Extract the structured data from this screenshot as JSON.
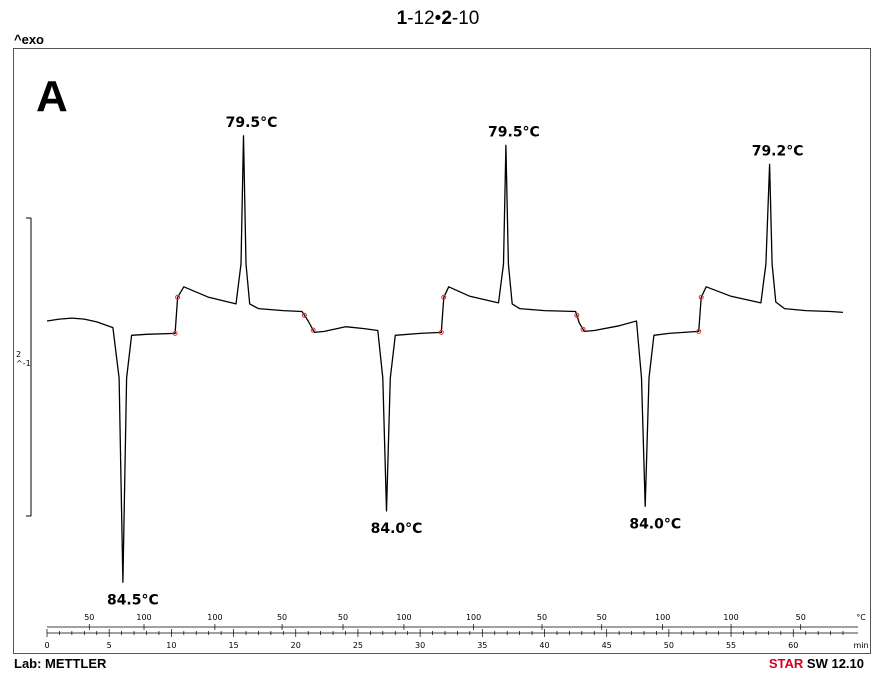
{
  "title": {
    "part1": "1",
    "part2": "-12•",
    "part3": "2",
    "part4": "-10"
  },
  "exo_label": "^exo",
  "panel_letter": "A",
  "scale_bar_label": {
    "line1": "2",
    "line2": "^-1"
  },
  "footer": {
    "lab": "Lab: METTLER",
    "brand_star": "STAR",
    "brand_rest": " SW 12.10"
  },
  "colors": {
    "trace": "#000000",
    "markers": "#e03030",
    "brand": "#d4001f"
  },
  "chart_data": {
    "type": "line",
    "xlabel": "min",
    "x_unit": "min",
    "xlim": [
      0,
      64
    ],
    "x_ticks": [
      0,
      5,
      10,
      15,
      20,
      25,
      30,
      35,
      40,
      45,
      50,
      55,
      60
    ],
    "temp_unit": "°C",
    "temp_ticks": [
      {
        "x": 3.4,
        "label": "50"
      },
      {
        "x": 7.8,
        "label": "100"
      },
      {
        "x": 13.5,
        "label": "100"
      },
      {
        "x": 18.9,
        "label": "50"
      },
      {
        "x": 23.8,
        "label": "50"
      },
      {
        "x": 28.7,
        "label": "100"
      },
      {
        "x": 34.3,
        "label": "100"
      },
      {
        "x": 39.8,
        "label": "50"
      },
      {
        "x": 44.6,
        "label": "50"
      },
      {
        "x": 49.5,
        "label": "100"
      },
      {
        "x": 55.0,
        "label": "100"
      },
      {
        "x": 60.6,
        "label": "50"
      }
    ],
    "peaks": [
      {
        "x": 6.1,
        "label": "84.5°C",
        "type": "endo"
      },
      {
        "x": 15.8,
        "label": "79.5°C",
        "type": "exo"
      },
      {
        "x": 27.3,
        "label": "84.0°C",
        "type": "endo"
      },
      {
        "x": 36.9,
        "label": "79.5°C",
        "type": "exo"
      },
      {
        "x": 48.1,
        "label": "84.0°C",
        "type": "endo"
      },
      {
        "x": 58.1,
        "label": "79.2°C",
        "type": "exo"
      }
    ],
    "trace": [
      [
        0,
        0.2
      ],
      [
        1,
        0.22
      ],
      [
        2,
        0.23
      ],
      [
        3,
        0.22
      ],
      [
        4,
        0.19
      ],
      [
        5.3,
        0.13
      ],
      [
        5.8,
        -0.4
      ],
      [
        6.1,
        -2.55
      ],
      [
        6.4,
        -0.4
      ],
      [
        6.8,
        0.05
      ],
      [
        8,
        0.06
      ],
      [
        10.3,
        0.07
      ],
      [
        10.5,
        0.45
      ],
      [
        11,
        0.56
      ],
      [
        13,
        0.45
      ],
      [
        15.2,
        0.38
      ],
      [
        15.6,
        0.8
      ],
      [
        15.8,
        2.15
      ],
      [
        16.0,
        0.8
      ],
      [
        16.3,
        0.38
      ],
      [
        17,
        0.33
      ],
      [
        19,
        0.31
      ],
      [
        20.5,
        0.3
      ],
      [
        21,
        0.2
      ],
      [
        21.5,
        0.08
      ],
      [
        22.3,
        0.09
      ],
      [
        24,
        0.14
      ],
      [
        25.5,
        0.12
      ],
      [
        26.6,
        0.1
      ],
      [
        27.0,
        -0.4
      ],
      [
        27.3,
        -1.8
      ],
      [
        27.6,
        -0.4
      ],
      [
        28,
        0.05
      ],
      [
        30,
        0.07
      ],
      [
        31.7,
        0.08
      ],
      [
        31.9,
        0.45
      ],
      [
        32.3,
        0.56
      ],
      [
        34,
        0.46
      ],
      [
        36.3,
        0.39
      ],
      [
        36.7,
        0.8
      ],
      [
        36.9,
        2.05
      ],
      [
        37.1,
        0.8
      ],
      [
        37.4,
        0.38
      ],
      [
        38,
        0.33
      ],
      [
        40,
        0.31
      ],
      [
        42.5,
        0.3
      ],
      [
        42.8,
        0.18
      ],
      [
        43.2,
        0.09
      ],
      [
        44,
        0.1
      ],
      [
        46,
        0.15
      ],
      [
        47.4,
        0.2
      ],
      [
        47.8,
        -0.4
      ],
      [
        48.1,
        -1.75
      ],
      [
        48.4,
        -0.4
      ],
      [
        48.8,
        0.05
      ],
      [
        50,
        0.07
      ],
      [
        52.4,
        0.09
      ],
      [
        52.6,
        0.45
      ],
      [
        53,
        0.56
      ],
      [
        55,
        0.46
      ],
      [
        57.4,
        0.39
      ],
      [
        57.8,
        0.8
      ],
      [
        58.1,
        1.85
      ],
      [
        58.3,
        0.8
      ],
      [
        58.6,
        0.4
      ],
      [
        59.3,
        0.33
      ],
      [
        61,
        0.31
      ],
      [
        63,
        0.3
      ],
      [
        64,
        0.29
      ]
    ],
    "markers_x": [
      10.3,
      10.5,
      20.7,
      21.4,
      31.7,
      31.9,
      42.6,
      43.1,
      52.4,
      52.6
    ]
  }
}
